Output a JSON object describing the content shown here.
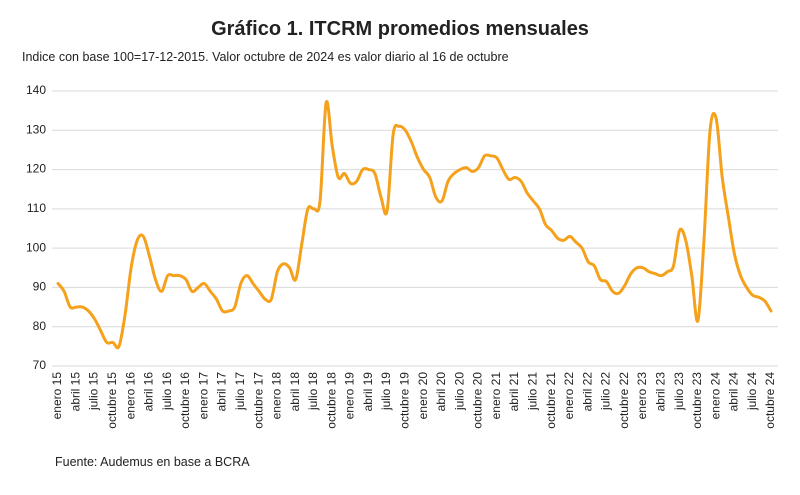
{
  "chart_data": {
    "type": "line",
    "title": "Gráfico 1. ITCRM promedios mensuales",
    "subtitle": "Indice con base 100=17-12-2015. Valor octubre de 2024 es valor diario al 16 de octubre",
    "source": "Fuente: Audemus en base a BCRA",
    "categories": [
      "enero 15",
      null,
      null,
      "abril 15",
      null,
      null,
      "julio 15",
      null,
      null,
      "octubre 15",
      null,
      null,
      "enero 16",
      null,
      null,
      "abril 16",
      null,
      null,
      "julio 16",
      null,
      null,
      "octubre 16",
      null,
      null,
      "enero 17",
      null,
      null,
      "abril 17",
      null,
      null,
      "julio 17",
      null,
      null,
      "octubre 17",
      null,
      null,
      "enero 18",
      null,
      null,
      "abril 18",
      null,
      null,
      "julio 18",
      null,
      null,
      "octubre 18",
      null,
      null,
      "enero 19",
      null,
      null,
      "abril 19",
      null,
      null,
      "julio 19",
      null,
      null,
      "octubre 19",
      null,
      null,
      "enero 20",
      null,
      null,
      "abril 20",
      null,
      null,
      "julio 20",
      null,
      null,
      "octubre 20",
      null,
      null,
      "enero 21",
      null,
      null,
      "abril 21",
      null,
      null,
      "julio 21",
      null,
      null,
      "octubre 21",
      null,
      null,
      "enero 22",
      null,
      null,
      "abril 22",
      null,
      null,
      "julio 22",
      null,
      null,
      "octubre 22",
      null,
      null,
      "enero 23",
      null,
      null,
      "abril 23",
      null,
      null,
      "julio 23",
      null,
      null,
      "octubre 23",
      null,
      null,
      "enero 24",
      null,
      null,
      "abril 24",
      null,
      null,
      "julio 24",
      null,
      null,
      "octubre 24"
    ],
    "values": [
      91,
      89,
      85,
      85,
      85,
      84,
      82,
      79,
      76,
      76,
      75,
      83,
      95,
      102,
      103,
      98,
      92,
      89,
      93,
      93,
      93,
      92,
      89,
      90,
      91,
      89,
      87,
      84,
      84,
      85,
      91,
      93,
      91,
      89,
      87,
      87,
      94,
      96,
      95,
      92,
      101,
      110,
      110,
      112,
      137,
      126,
      118,
      119,
      116.5,
      117,
      120,
      120,
      119,
      113,
      109.5,
      129,
      131,
      130,
      127,
      123,
      120,
      118,
      113,
      112,
      117,
      119,
      120,
      120.5,
      119.5,
      120.5,
      123.5,
      123.5,
      123,
      120,
      117.5,
      118,
      117,
      114,
      112,
      110,
      106,
      104.5,
      102.5,
      102,
      103,
      101.5,
      100,
      96.5,
      95.5,
      92,
      91.5,
      89,
      88.5,
      90.5,
      93.5,
      95,
      95,
      94,
      93.5,
      93,
      94,
      95.5,
      104.5,
      102,
      93,
      81.5,
      102,
      130,
      133,
      118,
      108,
      98.5,
      93,
      90,
      88,
      87.5,
      86.5,
      84
    ],
    "color": "#f5a11c",
    "ylim": [
      70,
      140
    ],
    "yticks": [
      70,
      80,
      90,
      100,
      110,
      120,
      130,
      140
    ],
    "grid": true
  }
}
